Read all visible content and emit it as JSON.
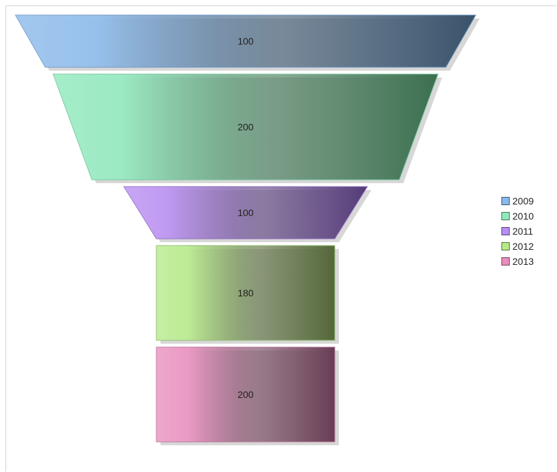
{
  "chart_data": {
    "type": "funnel",
    "title": "",
    "categories": [
      "2009",
      "2010",
      "2011",
      "2012",
      "2013"
    ],
    "values": [
      100,
      200,
      100,
      180,
      200
    ],
    "value_labels": [
      "100",
      "200",
      "100",
      "180",
      "200"
    ],
    "legend": {
      "placement": "right",
      "entries": [
        "2009",
        "2010",
        "2011",
        "2012",
        "2013"
      ]
    },
    "colors": {
      "2009": {
        "light": "#8ab9ea",
        "dark": "#3d5872",
        "border": "#6a93c2"
      },
      "2010": {
        "light": "#8fe8bc",
        "dark": "#3f7654",
        "border": "#6cc699"
      },
      "2011": {
        "light": "#b98ef1",
        "dark": "#5a3f7f",
        "border": "#8d6ac2"
      },
      "2012": {
        "light": "#b6ea89",
        "dark": "#596d3c",
        "border": "#87bb67"
      },
      "2013": {
        "light": "#e98ebe",
        "dark": "#6f4159",
        "border": "#b96f96"
      }
    },
    "grid": false
  }
}
